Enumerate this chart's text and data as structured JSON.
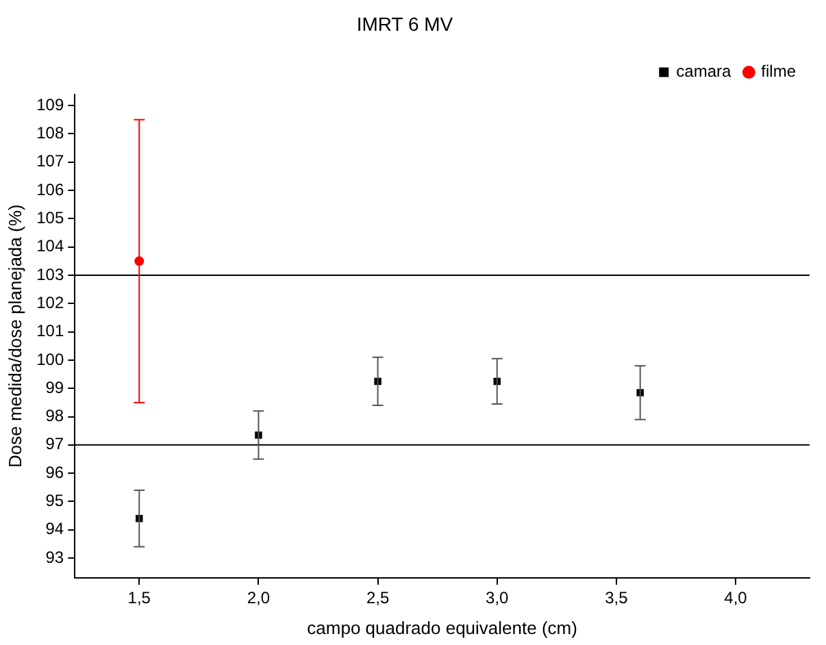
{
  "chart_data": {
    "type": "scatter",
    "title": "IMRT 6 MV",
    "xlabel": "campo quadrado equivalente (cm)",
    "ylabel": "Dose medida/dose planejada (%)",
    "series": [
      {
        "name": "camara",
        "color": "#000000",
        "marker": "square",
        "x": [
          1.5,
          2.0,
          2.5,
          3.0,
          3.6
        ],
        "values": [
          94.4,
          97.35,
          99.25,
          99.25,
          98.85
        ],
        "errors": [
          1.0,
          0.85,
          0.85,
          0.8,
          0.95
        ]
      },
      {
        "name": "filme",
        "color": "#ff0000",
        "marker": "circle",
        "x": [
          1.5
        ],
        "values": [
          103.5
        ],
        "errors": [
          5.0
        ]
      }
    ],
    "ref_lines": [
      {
        "axis": "y",
        "value": 103,
        "color": "#000000"
      },
      {
        "axis": "y",
        "value": 97,
        "color": "#000000"
      }
    ],
    "xlim": [
      1.23,
      4.31
    ],
    "xticks": [
      {
        "value": 1.5,
        "label": "1,5"
      },
      {
        "value": 2.0,
        "label": "2,0"
      },
      {
        "value": 2.5,
        "label": "2,5"
      },
      {
        "value": 3.0,
        "label": "3,0"
      },
      {
        "value": 3.5,
        "label": "3,5"
      },
      {
        "value": 4.0,
        "label": "4,0"
      }
    ],
    "ylim": [
      92.3,
      109.4
    ],
    "yticks": [
      93,
      94,
      95,
      96,
      97,
      98,
      99,
      100,
      101,
      102,
      103,
      104,
      105,
      106,
      107,
      108,
      109
    ],
    "legend": "top right"
  }
}
